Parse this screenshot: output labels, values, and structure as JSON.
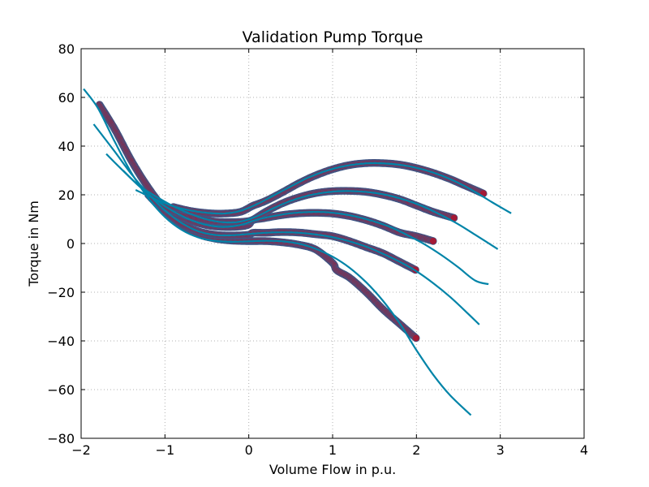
{
  "chart_data": {
    "type": "scatter",
    "title": "Validation Pump Torque",
    "xlabel": "Volume Flow in p.u.",
    "ylabel": "Torque in Nm",
    "xlim": [
      -2,
      4
    ],
    "ylim": [
      -80,
      80
    ],
    "xticks": [
      -2,
      -1,
      0,
      1,
      2,
      3,
      4
    ],
    "yticks": [
      -80,
      -60,
      -40,
      -20,
      0,
      20,
      40,
      60,
      80
    ],
    "xtick_labels": [
      "−2",
      "−1",
      "0",
      "1",
      "2",
      "3",
      "4"
    ],
    "ytick_labels": [
      "−80",
      "−60",
      "−40",
      "−20",
      "0",
      "20",
      "40",
      "60",
      "80"
    ],
    "grid": true,
    "colors": {
      "fit_line": "#0084a8",
      "measured_points": "#a31a36",
      "point_edge": "#3a5a8a",
      "grid": "#b0b0b0"
    },
    "series": [
      {
        "kind": "fit_line",
        "x": [
          -1.97,
          -1.8,
          -1.6,
          -1.4,
          -1.2,
          -1.0,
          -0.8,
          -0.6,
          -0.4,
          -0.2,
          0.0,
          0.2,
          0.4,
          0.6,
          0.8,
          1.0,
          1.2,
          1.4,
          1.6,
          1.8,
          2.0,
          2.2,
          2.4,
          2.65
        ],
        "y": [
          63.5,
          55.6,
          41.9,
          29.0,
          18.7,
          10.9,
          5.6,
          2.5,
          1.1,
          0.7,
          0.9,
          1.1,
          0.9,
          -0.1,
          -2.2,
          -5.4,
          -9.9,
          -15.9,
          -23.5,
          -32.8,
          -43.8,
          -53.9,
          -62.3,
          -70.5
        ]
      },
      {
        "kind": "fit_line",
        "x": [
          -1.85,
          -1.6,
          -1.4,
          -1.2,
          -1.0,
          -0.8,
          -0.6,
          -0.4,
          -0.2,
          0.0,
          0.2,
          0.4,
          0.6,
          0.8,
          1.0,
          1.2,
          1.4,
          1.6,
          1.8,
          2.0,
          2.2,
          2.4,
          2.6,
          2.75
        ],
        "y": [
          49.0,
          37.8,
          28.5,
          20.4,
          13.6,
          8.4,
          5.0,
          3.5,
          3.4,
          3.9,
          4.4,
          4.6,
          4.4,
          3.7,
          2.6,
          0.9,
          -1.3,
          -4.2,
          -7.5,
          -11.4,
          -16.3,
          -21.9,
          -28.3,
          -33.3
        ]
      },
      {
        "kind": "fit_line",
        "x": [
          -1.7,
          -1.5,
          -1.3,
          -1.1,
          -0.9,
          -0.7,
          -0.5,
          -0.3,
          -0.1,
          0.1,
          0.3,
          0.5,
          0.7,
          0.9,
          1.1,
          1.3,
          1.5,
          1.7,
          1.9,
          2.1,
          2.3,
          2.5,
          2.7,
          2.86
        ],
        "y": [
          36.8,
          29.9,
          23.3,
          17.7,
          13.2,
          9.8,
          7.6,
          6.8,
          7.6,
          9.8,
          11.3,
          12.4,
          12.9,
          12.9,
          12.2,
          10.9,
          9.0,
          6.6,
          3.3,
          -0.4,
          -4.8,
          -9.8,
          -15.2,
          -16.7
        ]
      },
      {
        "kind": "fit_line",
        "x": [
          -1.5,
          -1.3,
          -1.1,
          -0.9,
          -0.7,
          -0.5,
          -0.3,
          -0.1,
          0.1,
          0.3,
          0.5,
          0.7,
          0.9,
          1.1,
          1.3,
          1.5,
          1.7,
          1.9,
          2.1,
          2.3,
          2.5,
          2.7,
          2.97
        ],
        "y": [
          30.0,
          23.5,
          19.2,
          15.3,
          12.2,
          9.9,
          8.7,
          9.0,
          11.2,
          14.6,
          17.5,
          19.6,
          20.9,
          21.5,
          21.4,
          20.8,
          19.5,
          17.5,
          14.9,
          11.6,
          7.9,
          3.6,
          -2.3
        ]
      },
      {
        "kind": "fit_line",
        "x": [
          -1.35,
          -1.1,
          -0.9,
          -0.7,
          -0.5,
          -0.3,
          -0.1,
          0.1,
          0.3,
          0.5,
          0.7,
          0.9,
          1.1,
          1.3,
          1.5,
          1.7,
          1.9,
          2.1,
          2.3,
          2.5,
          2.7,
          2.9,
          3.13
        ],
        "y": [
          22.0,
          17.9,
          15.3,
          13.6,
          12.6,
          12.3,
          13.4,
          16.2,
          19.8,
          23.4,
          26.9,
          29.6,
          31.5,
          32.6,
          33.0,
          32.7,
          31.8,
          30.2,
          27.9,
          24.9,
          21.2,
          17.0,
          12.4
        ]
      },
      {
        "kind": "measured_points",
        "x": [
          -1.78,
          -1.6,
          -1.4,
          -1.2,
          -1.0,
          -0.8,
          -0.6,
          -0.4,
          -0.2,
          0.0,
          0.2,
          0.4,
          0.6,
          0.8,
          1.0,
          1.05,
          1.2,
          1.4,
          1.6,
          1.8,
          2.0
        ],
        "y": [
          57.0,
          47.0,
          34.0,
          23.0,
          14.0,
          7.5,
          3.8,
          2.0,
          1.2,
          1.0,
          1.0,
          0.5,
          -0.5,
          -2.5,
          -8.0,
          -11.0,
          -14.0,
          -20.0,
          -27.0,
          -33.0,
          -39.0
        ]
      },
      {
        "kind": "measured_points",
        "x": [
          -1.2,
          -1.0,
          -0.8,
          -0.6,
          -0.4,
          -0.2,
          0.0,
          0.05,
          0.2,
          0.4,
          0.6,
          0.8,
          1.0,
          1.2,
          1.4,
          1.6,
          1.8,
          2.0
        ],
        "y": [
          20.0,
          13.0,
          8.0,
          5.0,
          3.6,
          3.3,
          3.6,
          4.4,
          4.4,
          4.7,
          4.5,
          3.8,
          3.0,
          1.0,
          -1.5,
          -4.0,
          -7.5,
          -11.0
        ]
      },
      {
        "kind": "measured_points",
        "x": [
          -1.1,
          -0.9,
          -0.7,
          -0.5,
          -0.3,
          -0.1,
          0.0,
          0.05,
          0.2,
          0.4,
          0.6,
          0.8,
          1.0,
          1.2,
          1.4,
          1.6,
          1.8,
          2.0,
          2.2
        ],
        "y": [
          17.0,
          12.5,
          9.5,
          7.5,
          6.8,
          7.0,
          7.8,
          9.6,
          10.5,
          11.7,
          12.4,
          12.6,
          12.3,
          11.3,
          9.6,
          7.3,
          4.5,
          3.0,
          1.0
        ]
      },
      {
        "kind": "measured_points",
        "x": [
          -1.0,
          -0.8,
          -0.6,
          -0.4,
          -0.2,
          -0.05,
          0.05,
          0.2,
          0.4,
          0.6,
          0.8,
          1.0,
          1.2,
          1.4,
          1.6,
          1.8,
          2.0,
          2.2,
          2.45
        ],
        "y": [
          15.0,
          12.0,
          10.2,
          9.0,
          8.8,
          9.0,
          9.8,
          13.0,
          16.5,
          19.0,
          20.7,
          21.5,
          21.6,
          21.2,
          20.0,
          18.2,
          15.6,
          13.0,
          10.5
        ]
      },
      {
        "kind": "measured_points",
        "x": [
          -0.9,
          -0.7,
          -0.5,
          -0.3,
          -0.1,
          0.05,
          0.2,
          0.4,
          0.6,
          0.8,
          1.0,
          1.2,
          1.4,
          1.6,
          1.8,
          2.0,
          2.2,
          2.4,
          2.6,
          2.8
        ],
        "y": [
          15.0,
          13.4,
          12.5,
          12.3,
          13.0,
          15.5,
          17.5,
          21.0,
          24.8,
          28.0,
          30.5,
          32.2,
          33.0,
          33.0,
          32.4,
          31.0,
          29.0,
          26.5,
          23.5,
          20.5
        ]
      }
    ]
  }
}
